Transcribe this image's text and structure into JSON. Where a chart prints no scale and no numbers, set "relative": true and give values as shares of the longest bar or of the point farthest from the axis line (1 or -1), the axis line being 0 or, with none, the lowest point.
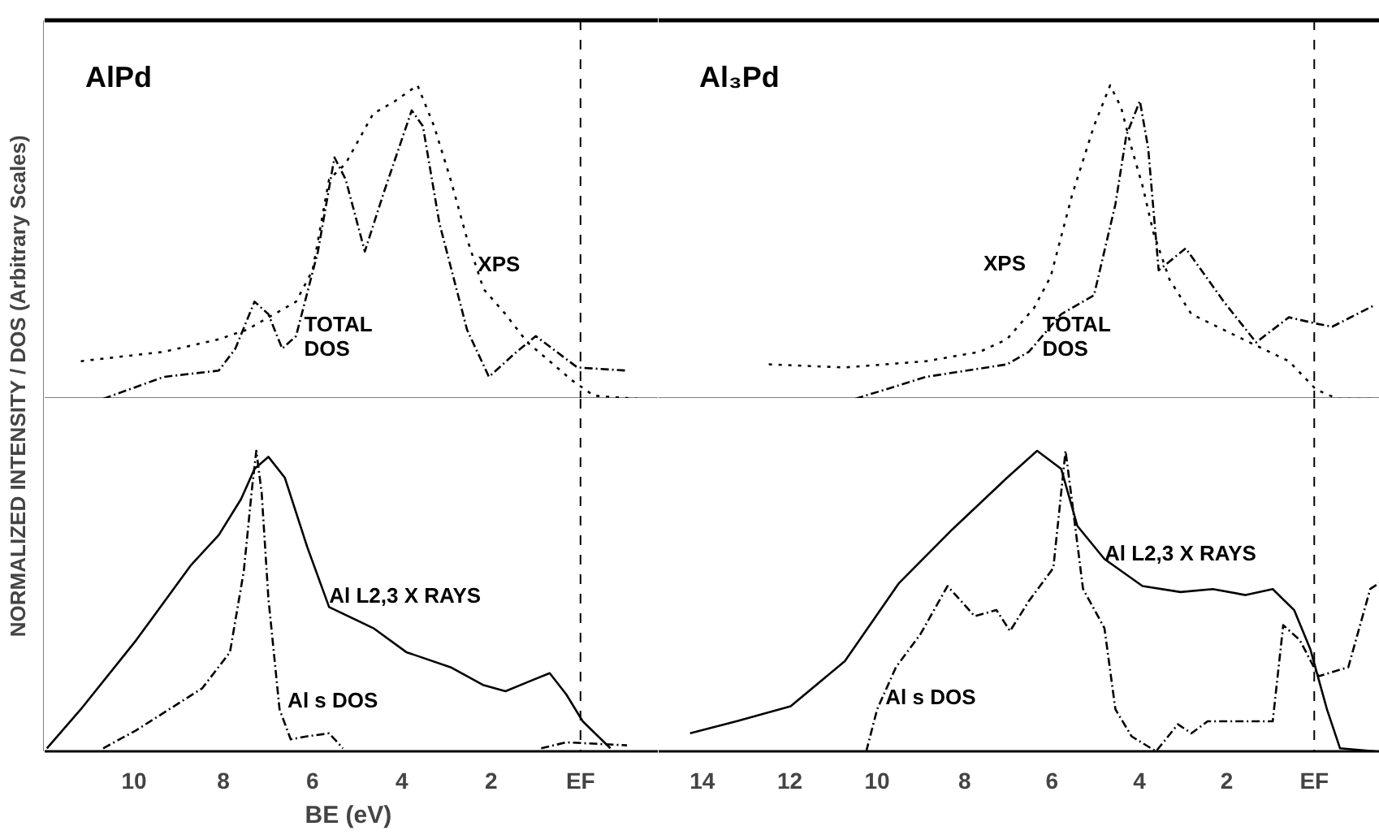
{
  "chart_data": [
    {
      "type": "line",
      "title": "AlPd",
      "ylabel": "NORMALIZED INTENSITY / DOS (Arbitrary Scales)",
      "relative": true,
      "xlim": [
        12,
        -1.75
      ],
      "tick_labels": false,
      "grid": false,
      "marker": "none",
      "series": [
        {
          "color": "#000000",
          "line_style": "dotted",
          "x": [
            11.19,
            9.33,
            8.1,
            7.48,
            6.86,
            6.37,
            6.0,
            5.63,
            5.26,
            4.64,
            4.15,
            3.65,
            3.28,
            2.91,
            2.54,
            2.17,
            1.68,
            1.19,
            0.69,
            0.2,
            -0.3,
            -1.28
          ],
          "values": [
            0.12,
            0.15,
            0.19,
            0.22,
            0.27,
            0.31,
            0.41,
            0.7,
            0.75,
            0.91,
            0.95,
            1.0,
            0.87,
            0.7,
            0.51,
            0.35,
            0.27,
            0.18,
            0.12,
            0.06,
            0.01,
            0
          ]
        },
        {
          "color": "#000000",
          "line_style": "dashdot",
          "x": [
            10.69,
            9.33,
            8.1,
            7.73,
            7.3,
            6.99,
            6.68,
            6.37,
            5.88,
            5.51,
            5.26,
            4.83,
            4.4,
            3.78,
            3.53,
            3.16,
            2.54,
            2.05,
            1.43,
            1.0,
            0.07,
            -1.04
          ],
          "values": [
            0,
            0.07,
            0.09,
            0.16,
            0.31,
            0.27,
            0.16,
            0.2,
            0.47,
            0.77,
            0.7,
            0.47,
            0.66,
            0.92,
            0.87,
            0.56,
            0.22,
            0.07,
            0.15,
            0.2,
            0.1,
            0.09
          ]
        }
      ],
      "annotations": [
        {
          "text": "XPS",
          "x": 2.3,
          "y": 0.43
        },
        {
          "text": "TOTAL\nDOS",
          "x": 6.19,
          "y": 0.2
        }
      ],
      "ref_lines": [
        {
          "axis": "x",
          "value": 0,
          "line_style": "dashed"
        }
      ]
    },
    {
      "type": "line",
      "xlabel": "BE  (eV)",
      "relative": true,
      "xlim": [
        12,
        -1.75
      ],
      "xticks": [
        10,
        8,
        6,
        4,
        2,
        {
          "value": 0,
          "label": "EF"
        }
      ],
      "tick_labels": "x",
      "grid": false,
      "marker": "none",
      "series": [
        {
          "color": "#000000",
          "line_style": "solid",
          "x": [
            11.95,
            11.19,
            9.95,
            8.72,
            8.1,
            7.6,
            7.3,
            6.99,
            6.62,
            6.12,
            5.63,
            4.64,
            3.9,
            2.91,
            2.17,
            1.68,
            1.19,
            0.69,
            0.32,
            -0.05,
            -0.67
          ],
          "values": [
            0.01,
            0.14,
            0.37,
            0.62,
            0.72,
            0.84,
            0.94,
            0.98,
            0.91,
            0.68,
            0.48,
            0.41,
            0.33,
            0.28,
            0.22,
            0.2,
            0.23,
            0.26,
            0.19,
            0.1,
            0.01
          ]
        },
        {
          "color": "#000000",
          "line_style": "dashdot",
          "x": [
            10.69,
            9.95,
            8.47,
            7.85,
            7.54,
            7.36,
            7.26,
            7.14,
            6.99,
            6.74,
            6.49,
            6.12,
            5.63,
            5.32,
            3.0,
            0.88,
            0.32,
            -1.04
          ],
          "values": [
            0.01,
            0.07,
            0.21,
            0.33,
            0.6,
            0.87,
            1.0,
            0.86,
            0.51,
            0.14,
            0.04,
            0.05,
            0.06,
            0.01,
            null,
            0.01,
            0.03,
            0.02
          ]
        }
      ],
      "annotations": [
        {
          "text": "Al L2,3 X RAYS",
          "x": 5.63,
          "y": 0.52
        },
        {
          "text": "Al s DOS",
          "x": 6.56,
          "y": 0.17
        }
      ],
      "ref_lines": [
        {
          "axis": "x",
          "value": 0,
          "line_style": "dashed"
        }
      ]
    },
    {
      "type": "line",
      "title": "Al₃Pd",
      "relative": true,
      "xlim": [
        15.0,
        -1.5
      ],
      "tick_labels": false,
      "grid": false,
      "marker": "none",
      "series": [
        {
          "color": "#000000",
          "line_style": "dotted",
          "x": [
            12.48,
            10.74,
            8.88,
            7.65,
            7.03,
            6.41,
            6.03,
            5.54,
            5.04,
            4.67,
            4.42,
            4.18,
            3.93,
            3.68,
            3.31,
            2.81,
            2.07,
            1.33,
            0.58,
            -0.04,
            -0.53,
            -1.4
          ],
          "values": [
            0.11,
            0.1,
            0.12,
            0.15,
            0.19,
            0.29,
            0.39,
            0.65,
            0.87,
            1.0,
            0.93,
            0.8,
            0.68,
            0.53,
            0.38,
            0.27,
            0.22,
            0.17,
            0.12,
            0.03,
            0,
            0
          ]
        },
        {
          "color": "#000000",
          "line_style": "dashdot",
          "x": [
            10.5,
            8.88,
            7.03,
            6.53,
            5.79,
            5.04,
            4.55,
            4.3,
            3.99,
            3.8,
            3.56,
            2.94,
            2.07,
            1.33,
            0.58,
            -0.04,
            -0.41,
            -1.4
          ],
          "values": [
            0,
            0.07,
            0.11,
            0.15,
            0.27,
            0.33,
            0.62,
            0.84,
            0.95,
            0.8,
            0.41,
            0.48,
            0.31,
            0.18,
            0.26,
            0.24,
            0.23,
            0.3
          ]
        }
      ],
      "annotations": [
        "XPS",
        {
          "text": "TOTAL\nDOS",
          "x": 6.22,
          "y": 0.2
        }
      ],
      "ref_lines": [
        {
          "axis": "x",
          "value": 0,
          "line_style": "dashed"
        }
      ]
    },
    {
      "type": "line",
      "relative": true,
      "xlim": [
        15.0,
        -1.5
      ],
      "xticks": [
        14,
        12,
        10,
        8,
        6,
        4,
        2,
        {
          "value": 0,
          "label": "EF"
        }
      ],
      "tick_labels": "x",
      "grid": false,
      "marker": "none",
      "series": [
        {
          "color": "#000000",
          "line_style": "solid",
          "x": [
            14.28,
            13.22,
            11.98,
            10.74,
            9.5,
            8.27,
            7.03,
            6.34,
            5.79,
            5.42,
            4.8,
            3.93,
            3.06,
            2.32,
            1.57,
            0.95,
            0.46,
            0.09,
            -0.29,
            -0.59,
            -1.4
          ],
          "values": [
            0.06,
            0.1,
            0.15,
            0.3,
            0.56,
            0.74,
            0.91,
            1.0,
            0.94,
            0.75,
            0.64,
            0.55,
            0.53,
            0.54,
            0.52,
            0.54,
            0.47,
            0.34,
            0.14,
            0.01,
            0
          ]
        },
        {
          "color": "#000000",
          "line_style": "dashdot",
          "x": [
            10.25,
            10.0,
            9.57,
            9.01,
            8.39,
            7.77,
            7.27,
            6.96,
            6.53,
            5.97,
            5.69,
            5.54,
            5.29,
            4.8,
            4.55,
            4.18,
            3.62,
            3.12,
            2.81,
            2.44,
            0.95,
            0.71,
            0.33,
            -0.1,
            -0.78,
            -1.28,
            -1.49
          ],
          "values": [
            0,
            0.14,
            0.28,
            0.39,
            0.55,
            0.45,
            0.47,
            0.4,
            0.5,
            0.61,
            1.0,
            0.83,
            0.54,
            0.41,
            0.14,
            0.05,
            0,
            0.09,
            0.06,
            0.1,
            0.1,
            0.42,
            0.37,
            0.25,
            0.28,
            0.54,
            0.56
          ]
        }
      ],
      "annotations": [
        {
          "text": "Al L2,3 X RAYS",
          "x": 4.8,
          "y": 0.66
        },
        {
          "text": "Al s DOS",
          "x": 9.81,
          "y": 0.18
        }
      ],
      "ref_lines": [
        {
          "axis": "x",
          "value": 0,
          "line_style": "dashed"
        }
      ]
    }
  ]
}
